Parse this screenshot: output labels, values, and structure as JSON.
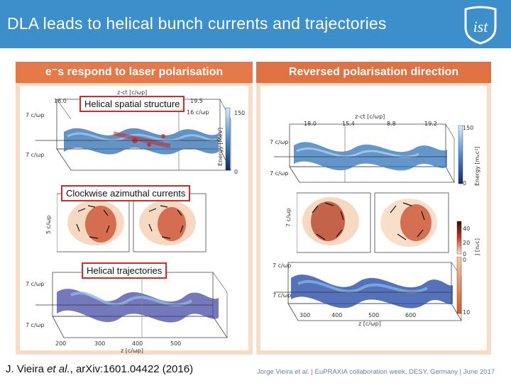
{
  "header": {
    "title": "DLA leads to helical bunch currents and trajectories",
    "logo_text": "ist",
    "bg_color": "#3d8fcb"
  },
  "left_panel": {
    "heading": "e⁻s respond to laser polarisation",
    "callouts": {
      "spatial": "Helical spatial structure",
      "currents": "Clockwise azimuthal currents",
      "trajectories": "Helical trajectories"
    },
    "plot1": {
      "top_label": "z-ct [c/ωp]",
      "ticks_top": [
        "18.0",
        "19.5"
      ],
      "ticks_right": [
        "16 c/ωp"
      ],
      "left_labels": [
        "7 c/ωp",
        "7 c/ωp"
      ],
      "colorbar_label": "Energy [MeV]",
      "colorbar_ticks": [
        "150",
        "0"
      ]
    },
    "plot2": {
      "left_label": "5 c/ωp"
    },
    "plot3": {
      "left_labels": [
        "7 c/ωp",
        "7 c/ωp"
      ],
      "x_ticks": [
        "200",
        "300",
        "400",
        "500"
      ],
      "x_label": "z [c/ωp]"
    }
  },
  "right_panel": {
    "heading": "Reversed polarisation direction",
    "plot1": {
      "top_label": "z-ct [c/ωp]",
      "ticks_top": [
        "18.0",
        "15.4",
        "8.8",
        "19.2"
      ],
      "left_labels": [
        "7 c/ωp",
        "7 c/ωp"
      ],
      "colorbar_label": "Energy [mₑc²]",
      "colorbar_ticks": [
        "150",
        "0"
      ]
    },
    "plot2": {
      "left_label": "7 c/ωp",
      "colorbar_label": "J [nₑc]",
      "colorbar_ticks": [
        "40",
        "20",
        "0"
      ]
    },
    "plot3": {
      "left_labels": [
        "7 c/ωp",
        "7 c/ωp"
      ],
      "x_ticks": [
        "300",
        "400",
        "500",
        "600"
      ],
      "x_label": "z [c/ωp]",
      "colorbar_ticks": [
        "0",
        "10"
      ]
    }
  },
  "citation_left": {
    "author": "J. Vieira ",
    "etal": "et al.",
    "ref": ", arXiv:1601.04422 (2016)"
  },
  "citation_right": {
    "text": "Jorge Vieira et al. | EuPRAXIA collaboration week, DESY, Germany | June 2017"
  }
}
